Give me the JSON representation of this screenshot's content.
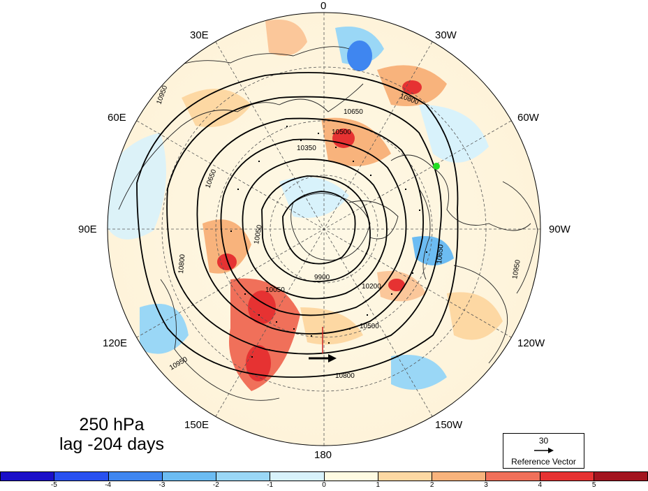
{
  "map": {
    "longitude_labels": [
      "0",
      "30W",
      "60W",
      "90W",
      "120W",
      "150W",
      "180",
      "150E",
      "120E",
      "90E",
      "60E",
      "30E"
    ],
    "contour_labels": [
      "10950",
      "10800",
      "10650",
      "10500",
      "10350",
      "10200",
      "10050",
      "9900"
    ],
    "colors": {
      "land_outline": "#222222",
      "contour": "#000000",
      "graticule": "#555555",
      "marker": "#22dd22"
    }
  },
  "title": {
    "level": "250 hPa",
    "lag": "lag -204 days"
  },
  "reference_vector": {
    "magnitude": "30",
    "caption": "Reference Vector"
  },
  "colorbar": {
    "colors": [
      "#1a0fc8",
      "#2850f0",
      "#3f86f0",
      "#6cbcf2",
      "#9ad7f6",
      "#d8f2fb",
      "#fffbe2",
      "#fdd8a3",
      "#f8b37c",
      "#f0705a",
      "#e63232",
      "#a3141e"
    ],
    "tick_labels": [
      "-5",
      "-4",
      "-3",
      "-2",
      "-1",
      "0",
      "1",
      "2",
      "3",
      "4",
      "5"
    ]
  }
}
